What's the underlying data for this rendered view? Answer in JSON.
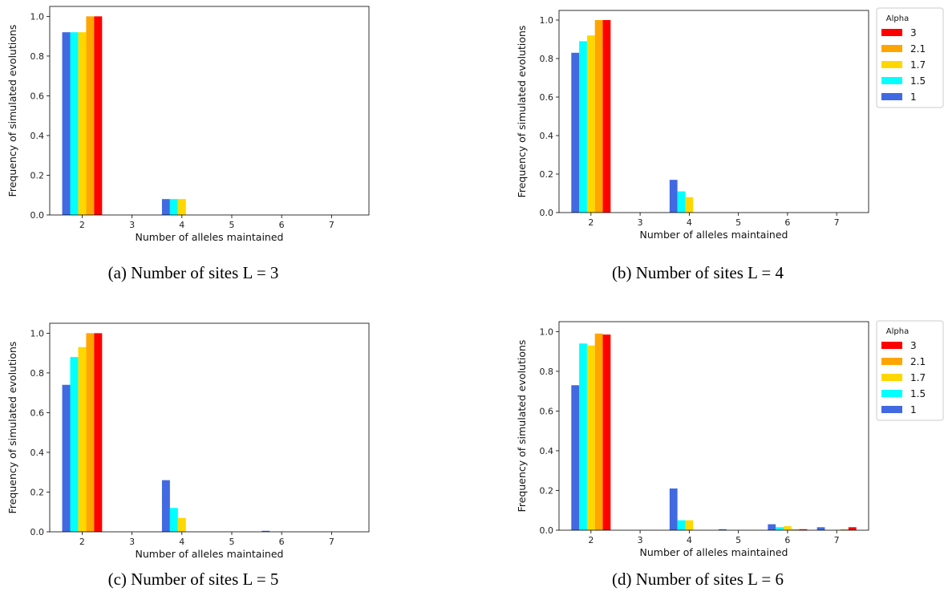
{
  "chart_data": [
    {
      "type": "bar",
      "caption": "(a) Number of sites L = 3",
      "xlabel": "Number of alleles maintained",
      "ylabel": "Frequency of simulated evolutions",
      "x": [
        2,
        3,
        4,
        5,
        6,
        7
      ],
      "xlim": [
        1.35,
        7.75
      ],
      "xticks": [
        2,
        3,
        4,
        5,
        6,
        7
      ],
      "ylim": [
        0,
        1.05
      ],
      "yticks": [
        {
          "value": 0,
          "label": "0.0"
        },
        0.2,
        0.4,
        0.6,
        0.8,
        {
          "value": 1,
          "label": "1.0"
        }
      ],
      "legend": false,
      "series": [
        {
          "name": "1",
          "color": "#4169e1",
          "values": [
            0.92,
            0,
            0.08,
            0,
            0,
            0
          ]
        },
        {
          "name": "1.5",
          "color": "#00ffff",
          "values": [
            0.92,
            0,
            0.08,
            0,
            0,
            0
          ]
        },
        {
          "name": "1.7",
          "color": "#ffd700",
          "values": [
            0.92,
            0,
            0.08,
            0,
            0,
            0
          ]
        },
        {
          "name": "2.1",
          "color": "#ffa500",
          "values": [
            1.0,
            0,
            0,
            0,
            0,
            0
          ]
        },
        {
          "name": "3",
          "color": "#ff0000",
          "values": [
            1.0,
            0,
            0,
            0,
            0,
            0
          ]
        }
      ]
    },
    {
      "type": "bar",
      "caption": "(b) Number of sites L = 4",
      "xlabel": "Number of alleles maintained",
      "ylabel": "Frequency of simulated evolutions",
      "x": [
        2,
        3,
        4,
        5,
        6,
        7
      ],
      "xlim": [
        1.35,
        7.65
      ],
      "xticks": [
        2,
        3,
        4,
        5,
        6,
        7
      ],
      "ylim": [
        0,
        1.05
      ],
      "yticks": [
        {
          "value": 0,
          "label": "0.0"
        },
        0.2,
        0.4,
        0.6,
        0.8,
        {
          "value": 1,
          "label": "1.0"
        }
      ],
      "legend": true,
      "legend_title": "Alpha",
      "series": [
        {
          "name": "1",
          "color": "#4169e1",
          "values": [
            0.83,
            0,
            0.17,
            0,
            0,
            0
          ]
        },
        {
          "name": "1.5",
          "color": "#00ffff",
          "values": [
            0.89,
            0,
            0.11,
            0,
            0,
            0
          ]
        },
        {
          "name": "1.7",
          "color": "#ffd700",
          "values": [
            0.92,
            0,
            0.08,
            0,
            0,
            0
          ]
        },
        {
          "name": "2.1",
          "color": "#ffa500",
          "values": [
            1.0,
            0,
            0,
            0,
            0,
            0
          ]
        },
        {
          "name": "3",
          "color": "#ff0000",
          "values": [
            1.0,
            0,
            0,
            0,
            0,
            0
          ]
        }
      ]
    },
    {
      "type": "bar",
      "caption": "(c) Number of sites L = 5",
      "xlabel": "Number of alleles maintained",
      "ylabel": "Frequency of simulated evolutions",
      "x": [
        2,
        3,
        4,
        5,
        6,
        7
      ],
      "xlim": [
        1.35,
        7.75
      ],
      "xticks": [
        2,
        3,
        4,
        5,
        6,
        7
      ],
      "ylim": [
        0,
        1.05
      ],
      "yticks": [
        {
          "value": 0,
          "label": "0.0"
        },
        0.2,
        0.4,
        0.6,
        0.8,
        {
          "value": 1,
          "label": "1.0"
        }
      ],
      "legend": false,
      "series": [
        {
          "name": "1",
          "color": "#4169e1",
          "values": [
            0.74,
            0,
            0.26,
            0,
            0.005,
            0
          ]
        },
        {
          "name": "1.5",
          "color": "#00ffff",
          "values": [
            0.88,
            0,
            0.12,
            0,
            0,
            0
          ]
        },
        {
          "name": "1.7",
          "color": "#ffd700",
          "values": [
            0.93,
            0,
            0.07,
            0,
            0,
            0
          ]
        },
        {
          "name": "2.1",
          "color": "#ffa500",
          "values": [
            1.0,
            0,
            0,
            0,
            0,
            0
          ]
        },
        {
          "name": "3",
          "color": "#ff0000",
          "values": [
            1.0,
            0,
            0,
            0,
            0,
            0
          ]
        }
      ]
    },
    {
      "type": "bar",
      "caption": "(d) Number of sites L = 6",
      "xlabel": "Number of alleles maintained",
      "ylabel": "Frequency of simulated evolutions",
      "x": [
        2,
        3,
        4,
        5,
        6,
        7
      ],
      "xlim": [
        1.35,
        7.65
      ],
      "xticks": [
        2,
        3,
        4,
        5,
        6,
        7
      ],
      "ylim": [
        0,
        1.05
      ],
      "yticks": [
        {
          "value": 0,
          "label": "0.0"
        },
        0.2,
        0.4,
        0.6,
        0.8,
        {
          "value": 1,
          "label": "1.0"
        }
      ],
      "legend": true,
      "legend_title": "Alpha",
      "series": [
        {
          "name": "1",
          "color": "#4169e1",
          "values": [
            0.73,
            0,
            0.21,
            0.005,
            0.03,
            0.015
          ]
        },
        {
          "name": "1.5",
          "color": "#00ffff",
          "values": [
            0.94,
            0,
            0.05,
            0,
            0.015,
            0
          ]
        },
        {
          "name": "1.7",
          "color": "#ffd700",
          "values": [
            0.93,
            0,
            0.05,
            0,
            0.02,
            0.002
          ]
        },
        {
          "name": "2.1",
          "color": "#ffa500",
          "values": [
            0.99,
            0,
            0,
            0,
            0.005,
            0.005
          ]
        },
        {
          "name": "3",
          "color": "#ff0000",
          "values": [
            0.985,
            0,
            0,
            0,
            0.005,
            0.015
          ]
        }
      ]
    }
  ]
}
